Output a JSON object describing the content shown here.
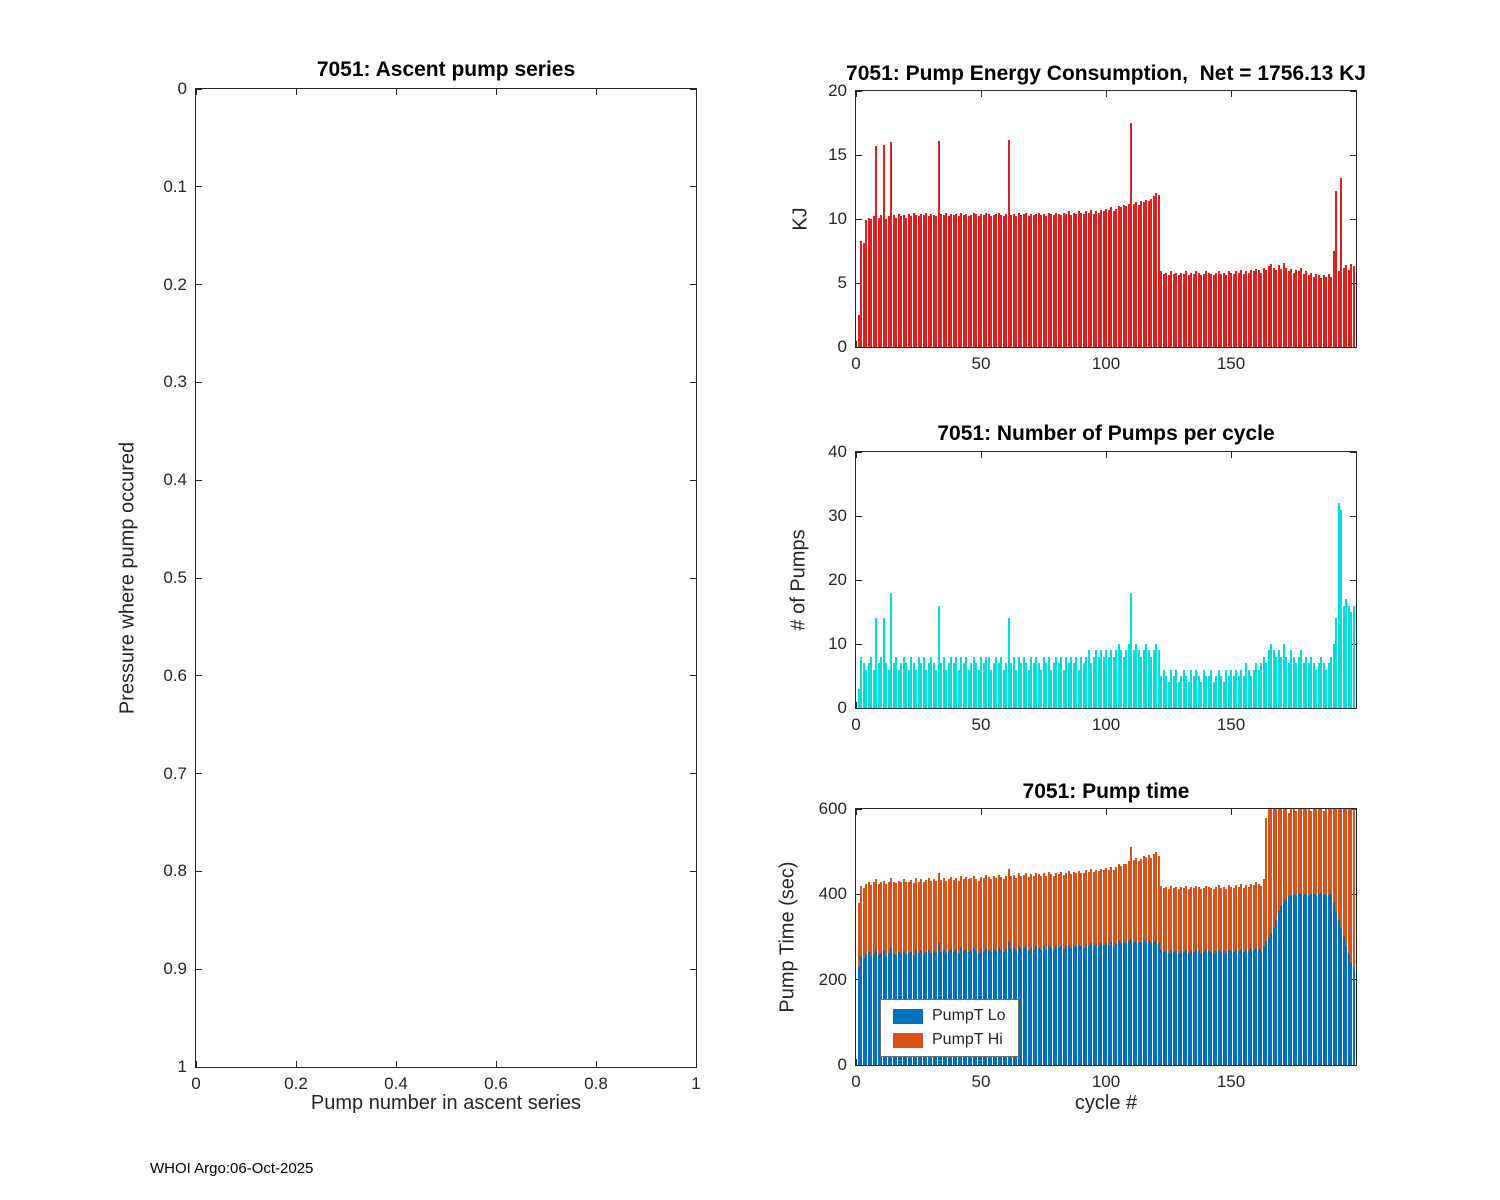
{
  "figure": {
    "background": "#ffffff",
    "footer_credit": "WHOI Argo:06-Oct-2025"
  },
  "chart_data": [
    {
      "type": "empty",
      "bar_name": "ascent-pump-point",
      "title": "7051: Ascent pump series",
      "xlabel": "Pump number in ascent series",
      "ylabel": "Pressure where pump occured",
      "xlim": [
        0,
        1
      ],
      "ylim": [
        0,
        1
      ],
      "xticks": [
        0,
        0.2,
        0.4,
        0.6,
        0.8,
        1
      ],
      "yticks": [
        0,
        0.1,
        0.2,
        0.3,
        0.4,
        0.5,
        0.6,
        0.7,
        0.8,
        0.9,
        1
      ],
      "y_axis_reversed": true,
      "grid": false,
      "values": []
    },
    {
      "type": "bar",
      "bar_name": "energy-bar",
      "title": "7051: Pump Energy Consumption,  Net = 1756.13 KJ",
      "net_kj": 1756.13,
      "xlabel": "",
      "ylabel": "KJ",
      "xlim": [
        0,
        200
      ],
      "ylim": [
        0,
        20
      ],
      "xticks": [
        0,
        50,
        100,
        150
      ],
      "yticks": [
        0,
        5,
        10,
        15,
        20
      ],
      "color": "#e01f1f",
      "x_note": "cycle # = index + 1",
      "values": [
        2.5,
        8.3,
        8.1,
        9.9,
        10.1,
        10.0,
        10.2,
        15.7,
        10.1,
        10.3,
        15.8,
        10.0,
        10.2,
        16.0,
        10.3,
        10.1,
        10.4,
        10.2,
        10.3,
        10.1,
        10.4,
        10.2,
        10.5,
        10.3,
        10.2,
        10.4,
        10.3,
        10.5,
        10.2,
        10.4,
        10.3,
        10.2,
        16.1,
        10.4,
        10.3,
        10.5,
        10.2,
        10.4,
        10.3,
        10.4,
        10.2,
        10.5,
        10.3,
        10.4,
        10.2,
        10.3,
        10.5,
        10.4,
        10.2,
        10.4,
        10.3,
        10.5,
        10.4,
        10.2,
        10.3,
        10.4,
        10.5,
        10.3,
        10.2,
        10.4,
        16.2,
        10.3,
        10.4,
        10.2,
        10.5,
        10.3,
        10.4,
        10.5,
        10.2,
        10.4,
        10.3,
        10.4,
        10.5,
        10.3,
        10.4,
        10.2,
        10.5,
        10.4,
        10.3,
        10.5,
        10.4,
        10.3,
        10.5,
        10.4,
        10.6,
        10.3,
        10.5,
        10.4,
        10.6,
        10.5,
        10.4,
        10.6,
        10.5,
        10.7,
        10.4,
        10.6,
        10.5,
        10.7,
        10.6,
        10.8,
        10.7,
        10.9,
        10.6,
        10.8,
        11.0,
        10.9,
        11.1,
        11.0,
        11.2,
        17.5,
        11.2,
        11.3,
        11.1,
        11.4,
        11.3,
        11.5,
        11.4,
        11.6,
        11.8,
        12.0,
        11.9,
        5.9,
        5.7,
        5.8,
        5.6,
        5.9,
        5.7,
        5.8,
        5.6,
        5.8,
        5.7,
        5.9,
        5.6,
        5.8,
        5.7,
        5.9,
        5.8,
        5.6,
        5.7,
        5.9,
        5.8,
        5.7,
        5.6,
        5.8,
        5.9,
        5.7,
        5.8,
        5.6,
        5.9,
        5.8,
        5.7,
        5.9,
        5.8,
        6.0,
        5.7,
        5.9,
        5.8,
        6.0,
        5.9,
        6.1,
        6.0,
        5.8,
        6.2,
        6.0,
        6.3,
        6.5,
        6.2,
        6.0,
        6.4,
        6.1,
        6.6,
        6.2,
        5.9,
        6.1,
        5.8,
        6.0,
        5.9,
        6.2,
        5.7,
        5.9,
        5.6,
        5.8,
        5.5,
        5.7,
        5.6,
        5.4,
        5.6,
        5.5,
        5.7,
        5.5,
        7.5,
        12.2,
        5.9,
        13.2,
        6.2,
        6.4,
        6.0,
        6.5,
        6.3
      ]
    },
    {
      "type": "bar",
      "bar_name": "pump-count-bar",
      "title": "7051: Number of Pumps per cycle",
      "xlabel": "",
      "ylabel": "# of Pumps",
      "xlim": [
        0,
        200
      ],
      "ylim": [
        0,
        40
      ],
      "xticks": [
        0,
        50,
        100,
        150
      ],
      "yticks": [
        0,
        10,
        20,
        30,
        40
      ],
      "color": "#00dede",
      "x_note": "cycle # = index + 1",
      "values": [
        3,
        8,
        7,
        6,
        7,
        8,
        6,
        14,
        7,
        8,
        14,
        7,
        6,
        18,
        7,
        8,
        6,
        7,
        8,
        7,
        6,
        8,
        7,
        6,
        8,
        7,
        8,
        6,
        7,
        8,
        7,
        6,
        16,
        7,
        8,
        6,
        7,
        8,
        7,
        8,
        6,
        8,
        7,
        8,
        6,
        7,
        8,
        7,
        6,
        8,
        7,
        8,
        8,
        6,
        7,
        8,
        7,
        8,
        6,
        7,
        14,
        7,
        8,
        6,
        8,
        7,
        8,
        7,
        6,
        8,
        7,
        8,
        7,
        6,
        8,
        7,
        8,
        6,
        7,
        8,
        7,
        8,
        6,
        8,
        7,
        8,
        7,
        8,
        6,
        8,
        7,
        8,
        9,
        7,
        8,
        9,
        8,
        9,
        8,
        9,
        8,
        9,
        8,
        9,
        10,
        9,
        8,
        9,
        10,
        18,
        9,
        10,
        9,
        8,
        9,
        10,
        9,
        8,
        9,
        10,
        9,
        5,
        6,
        5,
        4,
        6,
        5,
        6,
        4,
        5,
        6,
        5,
        4,
        6,
        5,
        6,
        5,
        4,
        6,
        5,
        5,
        6,
        4,
        5,
        6,
        5,
        4,
        6,
        5,
        6,
        5,
        6,
        5,
        6,
        5,
        7,
        6,
        5,
        6,
        7,
        6,
        7,
        8,
        7,
        9,
        10,
        9,
        8,
        9,
        8,
        10,
        8,
        7,
        9,
        8,
        7,
        8,
        9,
        7,
        8,
        7,
        8,
        7,
        6,
        7,
        8,
        7,
        6,
        7,
        8,
        10,
        14,
        32,
        31,
        16,
        17,
        16,
        15,
        16
      ]
    },
    {
      "type": "stacked_bar",
      "title": "7051: Pump time",
      "xlabel": "cycle #",
      "ylabel": "Pump Time (sec)",
      "xlim": [
        0,
        200
      ],
      "ylim": [
        0,
        600
      ],
      "xticks": [
        0,
        50,
        100,
        150
      ],
      "yticks": [
        0,
        200,
        400,
        600
      ],
      "legend_position": "bottom-left",
      "x_note": "cycle # = index + 1; bars clipped at ylim 600",
      "series": [
        {
          "name": "PumpT Lo",
          "color": "#0072BD",
          "values": [
            230,
            255,
            250,
            260,
            265,
            255,
            260,
            270,
            258,
            262,
            268,
            255,
            262,
            275,
            260,
            258,
            265,
            262,
            268,
            260,
            262,
            265,
            258,
            270,
            262,
            268,
            260,
            265,
            270,
            262,
            268,
            262,
            285,
            265,
            270,
            262,
            268,
            272,
            265,
            270,
            262,
            275,
            268,
            272,
            265,
            270,
            275,
            268,
            262,
            272,
            268,
            275,
            270,
            265,
            272,
            268,
            275,
            270,
            265,
            272,
            290,
            272,
            275,
            268,
            278,
            272,
            275,
            278,
            268,
            275,
            272,
            278,
            275,
            270,
            278,
            272,
            280,
            275,
            270,
            278,
            275,
            280,
            272,
            278,
            282,
            275,
            280,
            278,
            282,
            278,
            275,
            282,
            278,
            285,
            278,
            282,
            280,
            285,
            282,
            286,
            282,
            288,
            280,
            285,
            290,
            285,
            288,
            285,
            290,
            295,
            288,
            290,
            285,
            288,
            292,
            288,
            290,
            285,
            288,
            290,
            285,
            270,
            265,
            268,
            262,
            270,
            265,
            268,
            262,
            268,
            265,
            270,
            262,
            268,
            265,
            270,
            268,
            262,
            265,
            270,
            268,
            265,
            262,
            268,
            270,
            265,
            268,
            262,
            270,
            268,
            265,
            270,
            268,
            272,
            265,
            270,
            268,
            272,
            270,
            275,
            272,
            268,
            280,
            290,
            300,
            310,
            320,
            340,
            360,
            375,
            385,
            390,
            395,
            398,
            400,
            398,
            400,
            402,
            398,
            400,
            398,
            400,
            402,
            398,
            400,
            402,
            398,
            400,
            398,
            400,
            380,
            360,
            340,
            320,
            300,
            280,
            260,
            240,
            230
          ]
        },
        {
          "name": "PumpT Hi",
          "color": "#D95319",
          "values": [
            150,
            165,
            165,
            165,
            165,
            167,
            168,
            165,
            167,
            168,
            164,
            170,
            168,
            163,
            168,
            168,
            167,
            168,
            167,
            168,
            168,
            168,
            169,
            168,
            168,
            168,
            168,
            168,
            168,
            169,
            168,
            169,
            165,
            169,
            168,
            169,
            168,
            168,
            169,
            168,
            170,
            168,
            169,
            169,
            170,
            169,
            169,
            169,
            170,
            169,
            170,
            170,
            170,
            171,
            170,
            170,
            170,
            171,
            171,
            171,
            170,
            171,
            171,
            171,
            171,
            171,
            171,
            171,
            172,
            172,
            172,
            172,
            172,
            172,
            172,
            172,
            172,
            172,
            172,
            172,
            173,
            173,
            173,
            173,
            173,
            173,
            173,
            173,
            173,
            173,
            174,
            174,
            174,
            174,
            174,
            175,
            175,
            175,
            175,
            176,
            176,
            177,
            177,
            178,
            180,
            181,
            184,
            185,
            188,
            215,
            192,
            195,
            193,
            195,
            198,
            199,
            202,
            201,
            207,
            210,
            205,
            150,
            150,
            150,
            150,
            150,
            150,
            150,
            150,
            150,
            150,
            150,
            150,
            150,
            150,
            150,
            150,
            150,
            150,
            150,
            150,
            150,
            150,
            150,
            151,
            150,
            150,
            150,
            151,
            150,
            150,
            151,
            150,
            152,
            150,
            151,
            150,
            152,
            151,
            153,
            152,
            152,
            155,
            290,
            300,
            290,
            280,
            260,
            240,
            225,
            215,
            210,
            195,
            202,
            200,
            197,
            200,
            198,
            202,
            200,
            202,
            195,
            198,
            202,
            200,
            198,
            197,
            200,
            202,
            200,
            220,
            240,
            260,
            280,
            300,
            320,
            340,
            360,
            370
          ]
        }
      ]
    }
  ]
}
